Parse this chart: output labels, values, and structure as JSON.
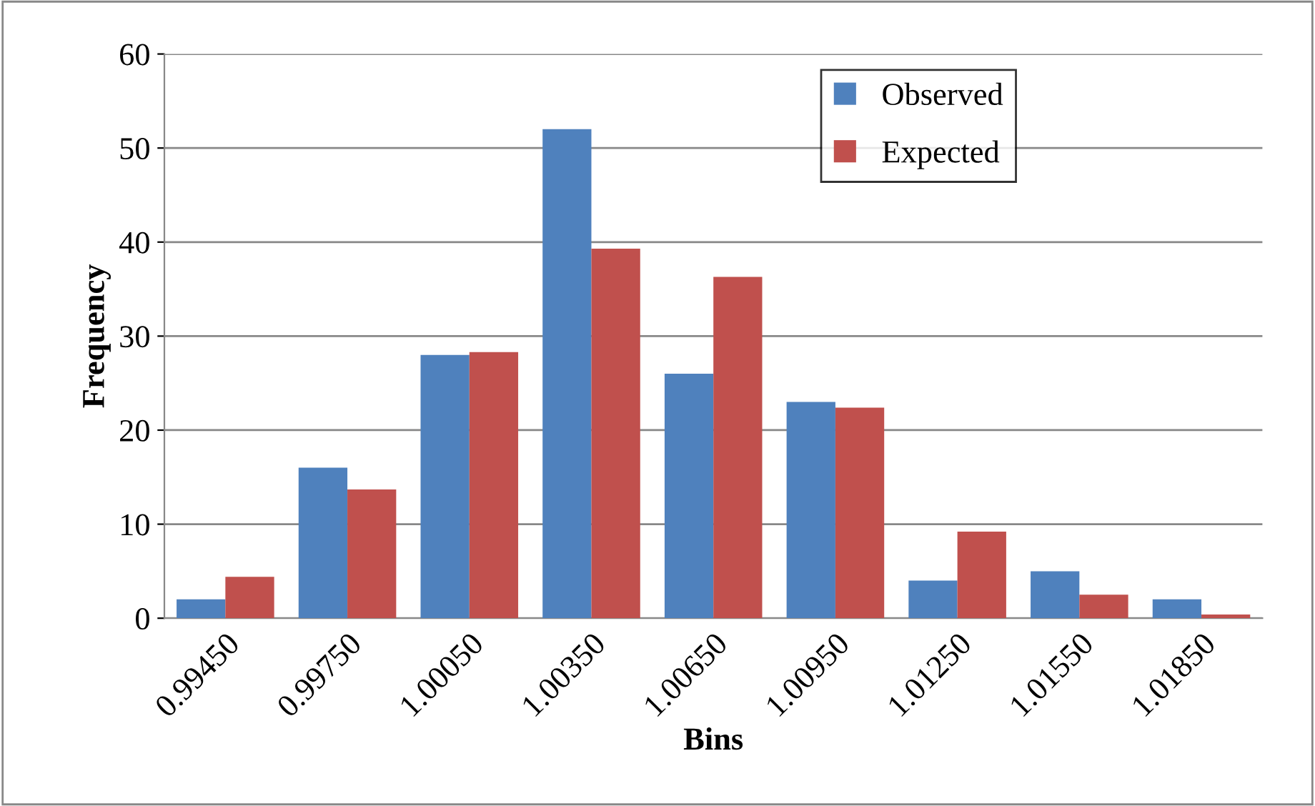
{
  "chart_data": {
    "type": "bar",
    "xlabel": "Bins",
    "ylabel": "Frequency",
    "categories": [
      "0.99450",
      "0.99750",
      "1.00050",
      "1.00350",
      "1.00650",
      "1.00950",
      "1.01250",
      "1.01550",
      "1.01850"
    ],
    "series": [
      {
        "name": "Observed",
        "color": "#4f81bd",
        "values": [
          2,
          16,
          28,
          52,
          26,
          23,
          4,
          5,
          2
        ]
      },
      {
        "name": "Expected",
        "color": "#c0504d",
        "values": [
          4.4,
          13.7,
          28.3,
          39.3,
          36.3,
          22.4,
          9.2,
          2.5,
          0.4
        ]
      }
    ],
    "ylim": [
      0,
      60
    ],
    "yticks": [
      0,
      10,
      20,
      30,
      40,
      50,
      60
    ],
    "grid": "y",
    "legend": "top right"
  }
}
